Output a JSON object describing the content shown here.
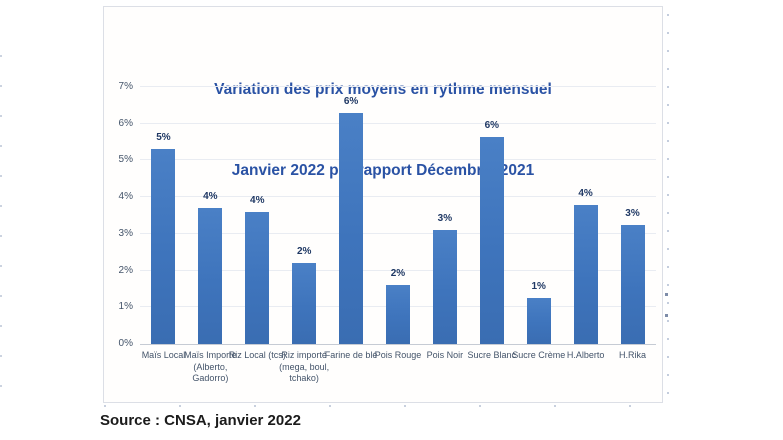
{
  "chart": {
    "title_line1": "Variation des prix moyens en rythme mensuel",
    "title_line2": "Janvier 2022 par rapport Décembre  2021"
  },
  "source_caption": "Source : CNSA, janvier 2022",
  "chart_data": {
    "type": "bar",
    "title": "Variation des prix moyens en rythme mensuel Janvier 2022 par rapport Décembre 2021",
    "categories": [
      "Maïs Local",
      "Maïs Importe\n(Alberto,\nGadorro)",
      "Riz Local (tcs)",
      "Riz importé\n(mega, boul,\ntchako)",
      "Farine de blé",
      "Pois Rouge",
      "Pois Noir",
      "Sucre Blanc",
      "Sucre Crème",
      "H.Alberto",
      "H.Rika"
    ],
    "values": [
      5.3,
      3.7,
      3.6,
      2.2,
      6.3,
      1.6,
      3.1,
      5.65,
      1.25,
      3.8,
      3.25
    ],
    "data_labels": [
      "5%",
      "4%",
      "4%",
      "2%",
      "6%",
      "2%",
      "3%",
      "6%",
      "1%",
      "4%",
      "3%"
    ],
    "xlabel": "",
    "ylabel": "",
    "ylim": [
      0,
      7
    ],
    "ytick_labels": [
      "0%",
      "1%",
      "2%",
      "3%",
      "4%",
      "5%",
      "6%",
      "7%"
    ],
    "grid": true,
    "legend": false,
    "bar_color": "#3e74bc",
    "data_label_color": "#1f3864",
    "axis_tick_color": "#44546a",
    "title_color": "#2a52a4"
  }
}
